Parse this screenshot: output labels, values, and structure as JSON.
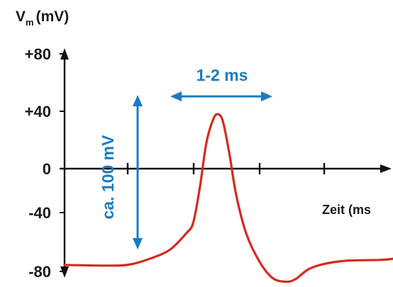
{
  "chart_data": {
    "type": "line",
    "ylabel_main": "V",
    "ylabel_sub": "m",
    "ylabel_unit": "(mV)",
    "xlabel": "Zeit (ms",
    "yticks": [
      "+80",
      "+40",
      "0",
      "-40",
      "-80"
    ],
    "ytick_values": [
      80,
      40,
      0,
      -40,
      -80
    ],
    "ylim": [
      -80,
      80
    ],
    "series": [
      {
        "color": "#d62a1f",
        "points": [
          [
            0,
            -75
          ],
          [
            0.7,
            -75.5
          ],
          [
            1.0,
            -74.5
          ],
          [
            1.3,
            -70
          ],
          [
            1.6,
            -63
          ],
          [
            1.85,
            -50
          ],
          [
            1.95,
            -42
          ],
          [
            2.05,
            -15
          ],
          [
            2.15,
            18
          ],
          [
            2.25,
            34
          ],
          [
            2.32,
            38
          ],
          [
            2.4,
            33
          ],
          [
            2.5,
            10
          ],
          [
            2.6,
            -20
          ],
          [
            2.75,
            -50
          ],
          [
            2.95,
            -72
          ],
          [
            3.15,
            -85
          ],
          [
            3.35,
            -88
          ],
          [
            3.5,
            -86
          ],
          [
            3.75,
            -77
          ],
          [
            4.2,
            -72
          ],
          [
            4.8,
            -71
          ],
          [
            5.0,
            -70
          ]
        ]
      }
    ],
    "annotations": {
      "duration_label": "1-2 ms",
      "amplitude_label": "ca. 100 mV",
      "color": "#1b7bc2"
    }
  }
}
